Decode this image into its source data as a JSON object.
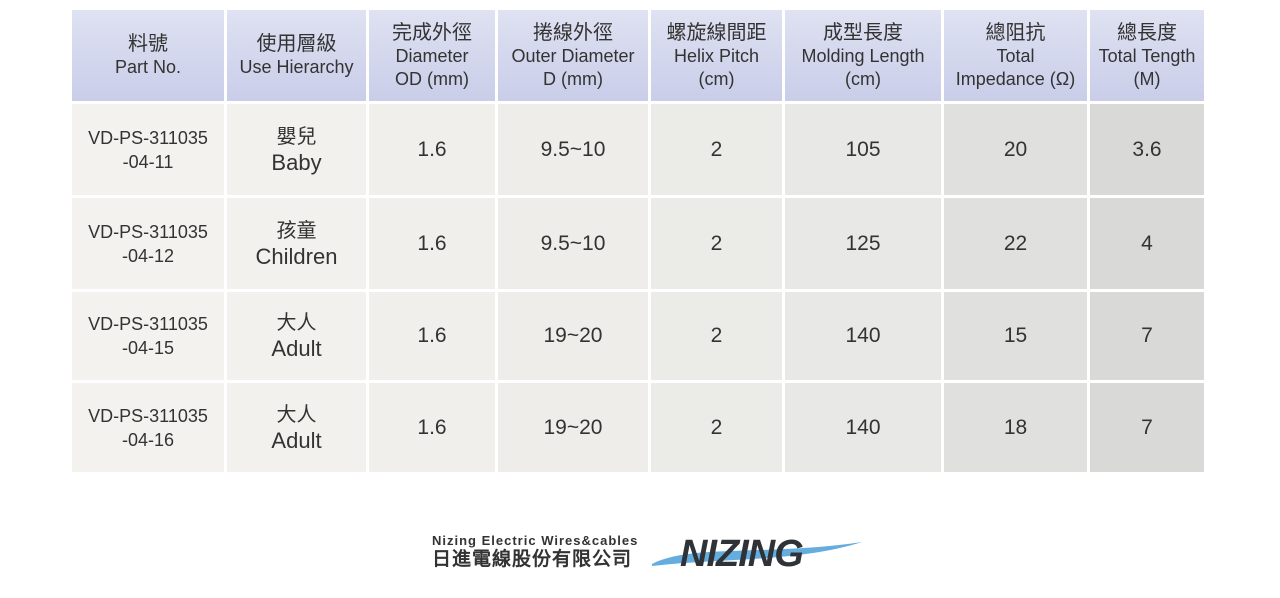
{
  "table": {
    "headers": [
      {
        "zh": "料號",
        "en": "Part No.",
        "en2": ""
      },
      {
        "zh": "使用層級",
        "en": "Use Hierarchy",
        "en2": ""
      },
      {
        "zh": "完成外徑",
        "en": "Diameter",
        "en2": "OD (mm)"
      },
      {
        "zh": "捲線外徑",
        "en": "Outer Diameter",
        "en2": "D (mm)"
      },
      {
        "zh": "螺旋線間距",
        "en": "Helix Pitch",
        "en2": "(cm)"
      },
      {
        "zh": "成型長度",
        "en": "Molding Length",
        "en2": "(cm)"
      },
      {
        "zh": "總阻抗",
        "en": "Total",
        "en2": "Impedance (Ω)"
      },
      {
        "zh": "總長度",
        "en": "Total Tength",
        "en2": "(M)"
      }
    ],
    "rows": [
      {
        "part1": "VD-PS-311035",
        "part2": "-04-11",
        "use_zh": "嬰兒",
        "use_en": "Baby",
        "od": "1.6",
        "d": "9.5~10",
        "pitch": "2",
        "molding": "105",
        "impedance": "20",
        "length": "3.6"
      },
      {
        "part1": "VD-PS-311035",
        "part2": "-04-12",
        "use_zh": "孩童",
        "use_en": "Children",
        "od": "1.6",
        "d": "9.5~10",
        "pitch": "2",
        "molding": "125",
        "impedance": "22",
        "length": "4"
      },
      {
        "part1": "VD-PS-311035",
        "part2": "-04-15",
        "use_zh": "大人",
        "use_en": "Adult",
        "od": "1.6",
        "d": "19~20",
        "pitch": "2",
        "molding": "140",
        "impedance": "15",
        "length": "7"
      },
      {
        "part1": "VD-PS-311035",
        "part2": "-04-16",
        "use_zh": "大人",
        "use_en": "Adult",
        "od": "1.6",
        "d": "19~20",
        "pitch": "2",
        "molding": "140",
        "impedance": "18",
        "length": "7"
      }
    ]
  },
  "brand": {
    "company_en": "Nizing Electric Wires&cables",
    "company_zh": "日進電線股份有限公司",
    "logo_word": "NIZING",
    "logo_color": "#2f3237",
    "swoosh_color": "#4a9fd8"
  }
}
